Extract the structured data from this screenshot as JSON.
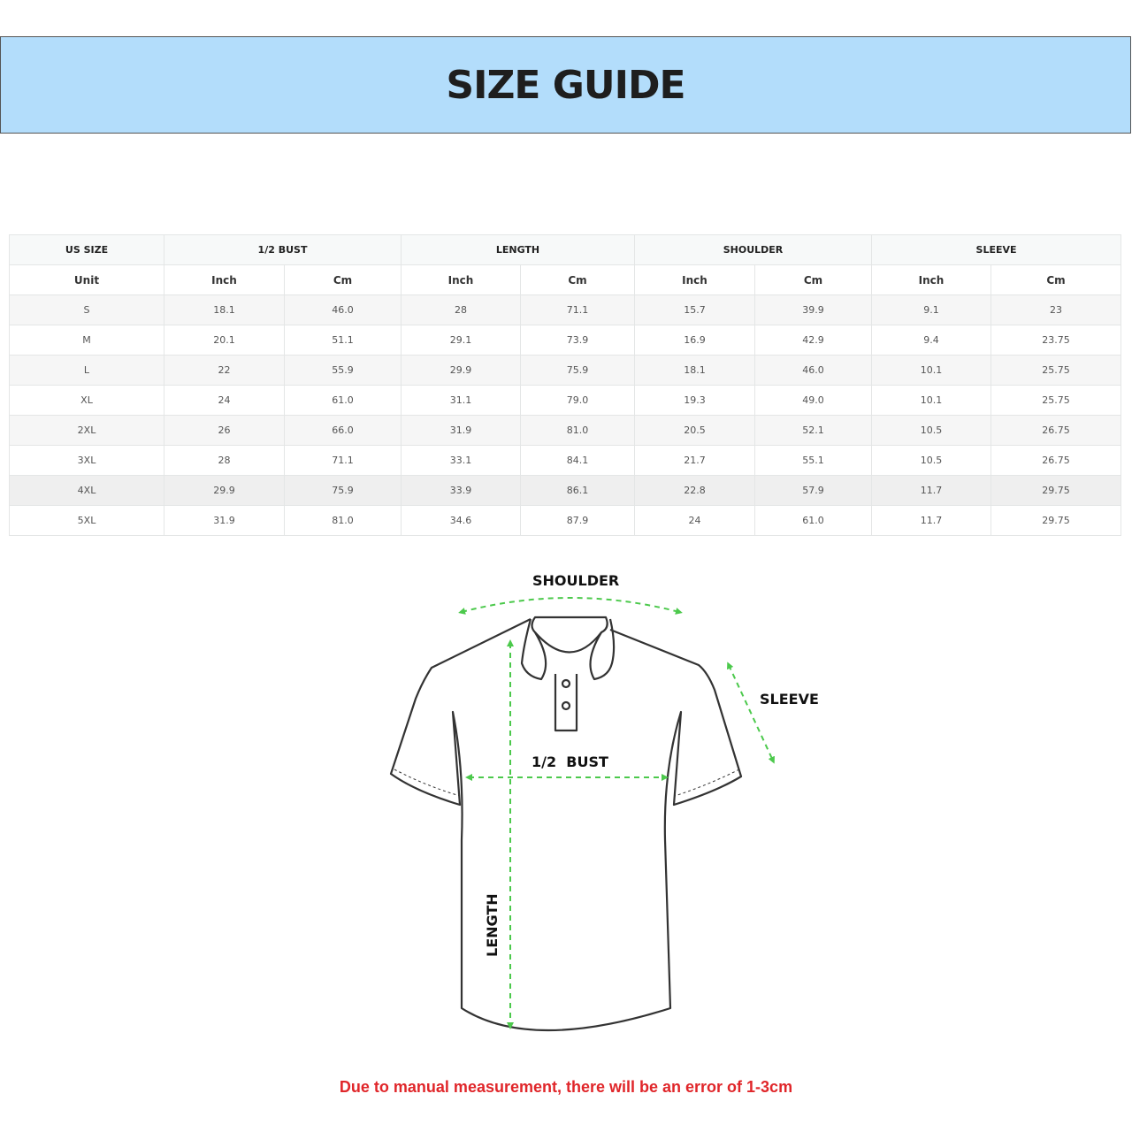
{
  "header": {
    "title": "SIZE GUIDE"
  },
  "table": {
    "group_headers": [
      "US SIZE",
      "1/2 BUST",
      "LENGTH",
      "SHOULDER",
      "SLEEVE"
    ],
    "unit_headers": [
      "Unit",
      "Inch",
      "Cm",
      "Inch",
      "Cm",
      "Inch",
      "Cm",
      "Inch",
      "Cm"
    ],
    "rows": [
      [
        "S",
        "18.1",
        "46.0",
        "28",
        "71.1",
        "15.7",
        "39.9",
        "9.1",
        "23"
      ],
      [
        "M",
        "20.1",
        "51.1",
        "29.1",
        "73.9",
        "16.9",
        "42.9",
        "9.4",
        "23.75"
      ],
      [
        "L",
        "22",
        "55.9",
        "29.9",
        "75.9",
        "18.1",
        "46.0",
        "10.1",
        "25.75"
      ],
      [
        "XL",
        "24",
        "61.0",
        "31.1",
        "79.0",
        "19.3",
        "49.0",
        "10.1",
        "25.75"
      ],
      [
        "2XL",
        "26",
        "66.0",
        "31.9",
        "81.0",
        "20.5",
        "52.1",
        "10.5",
        "26.75"
      ],
      [
        "3XL",
        "28",
        "71.1",
        "33.1",
        "84.1",
        "21.7",
        "55.1",
        "10.5",
        "26.75"
      ],
      [
        "4XL",
        "29.9",
        "75.9",
        "33.9",
        "86.1",
        "22.8",
        "57.9",
        "11.7",
        "29.75"
      ],
      [
        "5XL",
        "31.9",
        "81.0",
        "34.6",
        "87.9",
        "24",
        "61.0",
        "11.7",
        "29.75"
      ]
    ]
  },
  "diagram": {
    "shoulder": "SHOULDER",
    "sleeve": "SLEEVE",
    "bust": "1/2  BUST",
    "length": "LENGTH",
    "arrow_color": "#4cc94c"
  },
  "note": "Due to manual measurement, there will be an error of 1-3cm"
}
